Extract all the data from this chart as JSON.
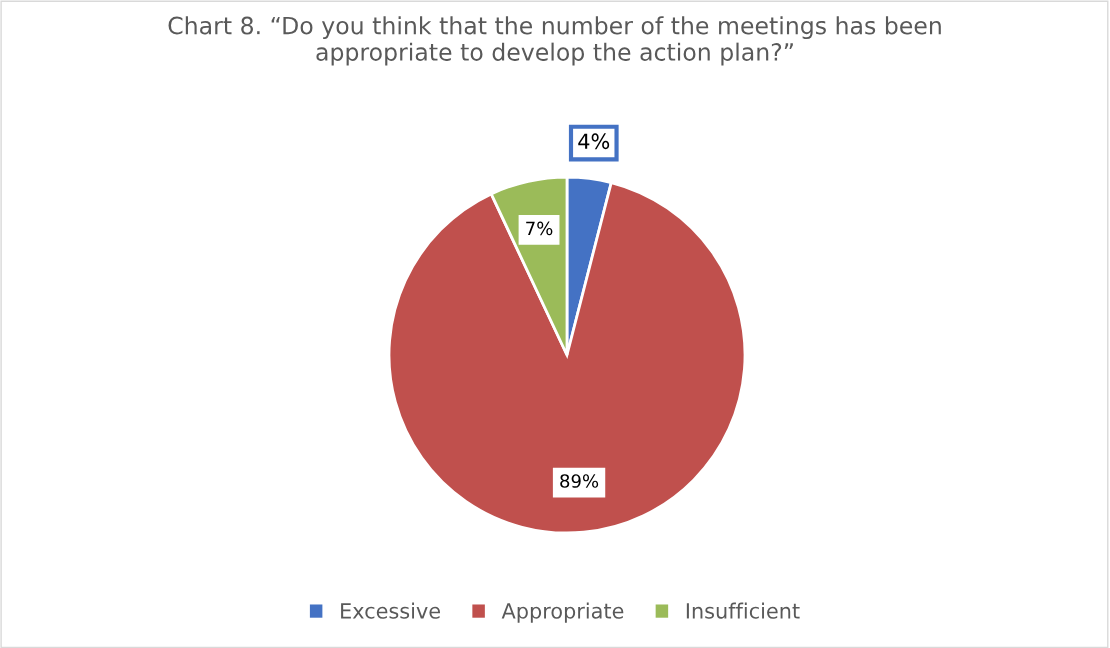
{
  "chart_data": {
    "type": "pie",
    "title": "Chart 8. “Do you think that the number of the meetings has been appropriate to develop the action plan?”",
    "categories": [
      "Excessive",
      "Appropriate",
      "Insufficient"
    ],
    "values": [
      4,
      89,
      7
    ],
    "colors": [
      "#4472c4",
      "#c0504d",
      "#9bbb59"
    ],
    "value_labels": [
      "4%",
      "89%",
      "7%"
    ],
    "legend": "bottom"
  }
}
